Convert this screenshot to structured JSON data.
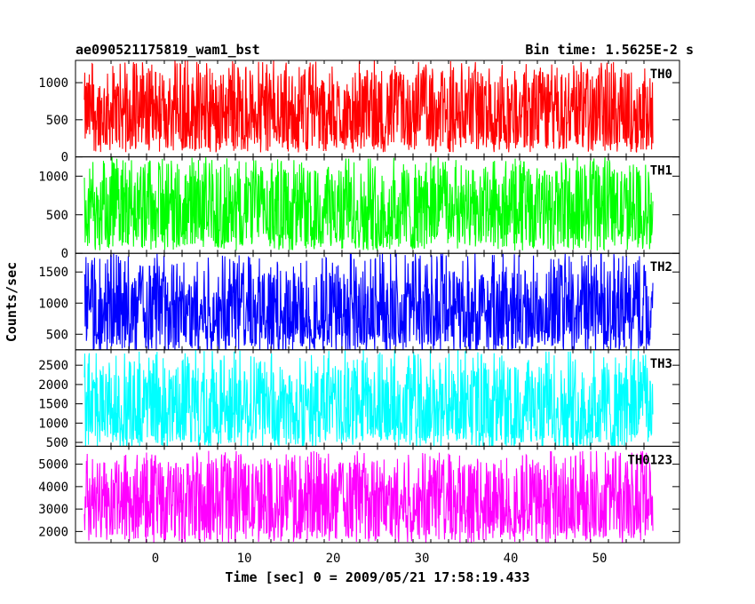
{
  "header": {
    "title": "ae090521175819_wam1_bst",
    "bin_time": "Bin time: 1.5625E-2 s"
  },
  "axes": {
    "xlabel": "Time [sec] 0 = 2009/05/21 17:58:19.433",
    "ylabel": "Counts/sec"
  },
  "chart_data": {
    "type": "line",
    "title": "ae090521175819_wam1_bst",
    "subtitle": "Bin time: 1.5625E-2 s",
    "xlabel": "Time [sec] 0 = 2009/05/21 17:58:19.433",
    "ylabel": "Counts/sec",
    "xlim": [
      -9,
      59
    ],
    "x_ticks": [
      0,
      10,
      20,
      30,
      40,
      50
    ],
    "x_range_of_data": [
      -8,
      56
    ],
    "bin_time_s": 0.015625,
    "grid": false,
    "legend": "none",
    "panels": [
      {
        "name": "TH0",
        "color": "#ff0000",
        "ylim": [
          0,
          1300
        ],
        "y_ticks": [
          0,
          500,
          1000
        ],
        "typical": 600,
        "min": 100,
        "max": 1300
      },
      {
        "name": "TH1",
        "color": "#00ff00",
        "ylim": [
          0,
          1250
        ],
        "y_ticks": [
          0,
          500,
          1000
        ],
        "typical": 560,
        "min": 80,
        "max": 1250
      },
      {
        "name": "TH2",
        "color": "#0000ff",
        "ylim": [
          250,
          1800
        ],
        "y_ticks": [
          500,
          1000,
          1500
        ],
        "typical": 850,
        "min": 300,
        "max": 1800
      },
      {
        "name": "TH3",
        "color": "#00ffff",
        "ylim": [
          400,
          2900
        ],
        "y_ticks": [
          500,
          1000,
          1500,
          2000,
          2500
        ],
        "typical": 1400,
        "min": 500,
        "max": 2900
      },
      {
        "name": "TH0123",
        "color": "#ff00ff",
        "ylim": [
          1500,
          5800
        ],
        "y_ticks": [
          2000,
          3000,
          4000,
          5000
        ],
        "typical": 3300,
        "min": 1600,
        "max": 5600
      }
    ]
  }
}
